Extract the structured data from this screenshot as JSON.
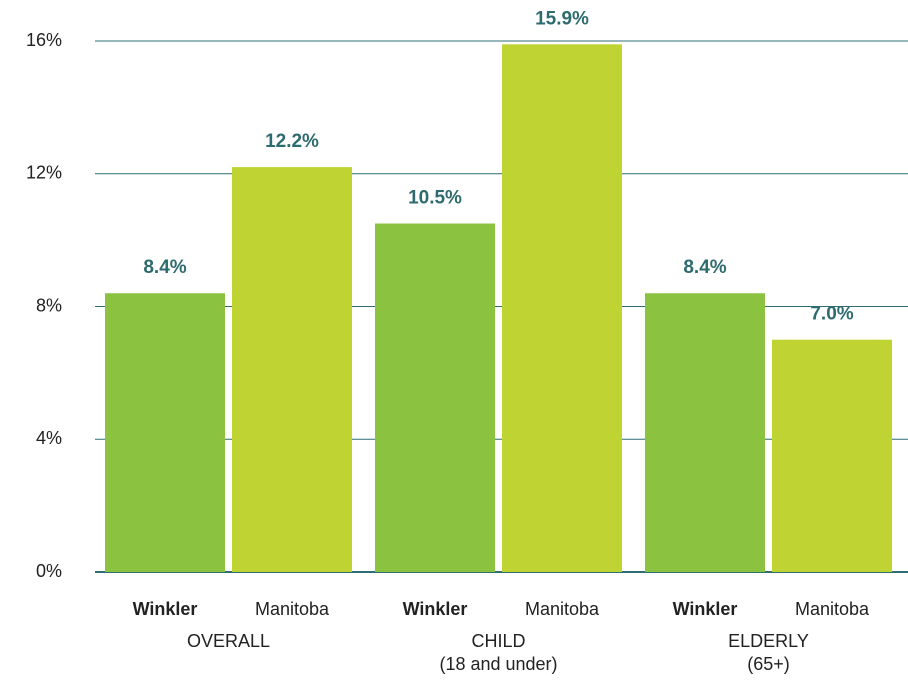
{
  "chart_data": {
    "type": "bar",
    "categories": [
      "OVERALL",
      "CHILD",
      "ELDERLY"
    ],
    "category_notes": [
      null,
      "(18 and under)",
      "(65+)"
    ],
    "series": [
      {
        "name": "Winkler",
        "color": "#8bc341",
        "values": [
          8.4,
          10.5,
          8.4
        ],
        "value_labels": [
          "8.4%",
          "10.5%",
          "8.4%"
        ]
      },
      {
        "name": "Manitoba",
        "color": "#bfd432",
        "values": [
          12.2,
          15.9,
          7.0
        ],
        "value_labels": [
          "12.2%",
          "15.9%",
          "7.0%"
        ]
      }
    ],
    "ylim": [
      0,
      16
    ],
    "yticks": [
      {
        "value": 0,
        "label": "0%"
      },
      {
        "value": 4,
        "label": "4%"
      },
      {
        "value": 8,
        "label": "8%"
      },
      {
        "value": 12,
        "label": "12%"
      },
      {
        "value": 16,
        "label": "16%"
      }
    ],
    "grid": true
  }
}
